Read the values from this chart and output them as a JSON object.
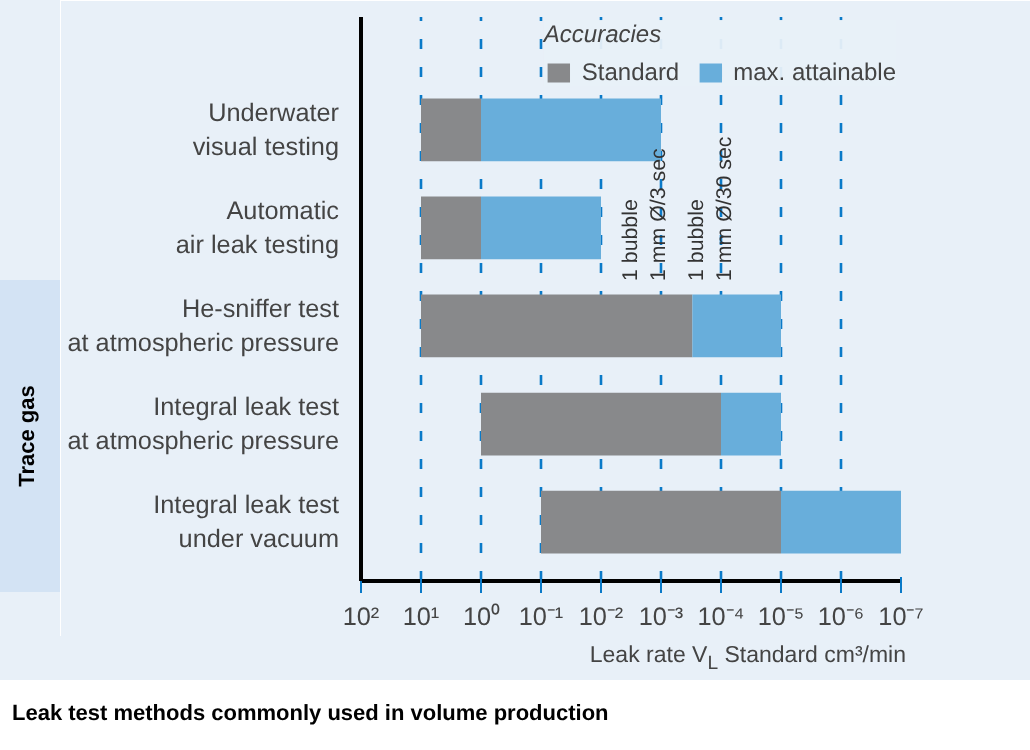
{
  "chart_data": {
    "type": "bar",
    "orientation": "horizontal",
    "log": "x",
    "categories": [
      "Underwater\nvisual testing",
      "Automatic\nair leak testing",
      "He-sniffer test\nat atmospheric pressure",
      "Integral leak test\nat atmospheric pressure",
      "Integral leak test\nunder vacuum"
    ],
    "series": [
      {
        "name": "Standard",
        "color": "#88898b",
        "base": [
          10,
          10,
          10,
          1,
          0.1
        ],
        "values": [
          -9,
          -9,
          -9.9997,
          -0.9999,
          -0.09999
        ]
      },
      {
        "name": "max. attainable",
        "color": "#68aedb",
        "base": [
          1,
          1,
          0.0003,
          0.0001,
          1e-05
        ],
        "values": [
          -0.999,
          -0.99,
          -0.00029,
          -9e-05,
          -9.9e-06
        ]
      }
    ],
    "xlim": [
      100,
      1e-07
    ],
    "xticks": [
      {
        "value": 100,
        "label": "10²"
      },
      {
        "value": 10,
        "label": "10¹"
      },
      {
        "value": 1,
        "label": "10⁰"
      },
      {
        "value": 0.1,
        "label": "10⁻¹"
      },
      {
        "value": 0.01,
        "label": "10⁻²"
      },
      {
        "value": 0.001,
        "label": "10⁻³"
      },
      {
        "value": 0.0001,
        "label": "10⁻⁴"
      },
      {
        "value": 1e-05,
        "label": "10⁻⁵"
      },
      {
        "value": 1e-06,
        "label": "10⁻⁶"
      },
      {
        "value": 1e-07,
        "label": "10⁻⁷"
      }
    ],
    "xlabel": "Leak rate V$_{L}$ Standard cm³/min",
    "legend_title": "Accuracies",
    "legend": "top right",
    "grid": "x",
    "annotations": [
      "1 bubble\n1 mm Ø/3 sec",
      "1 bubble\n1 mm Ø/30 sec",
      "Trace gas",
      "Leak test methods commonly used in volume production"
    ]
  }
}
